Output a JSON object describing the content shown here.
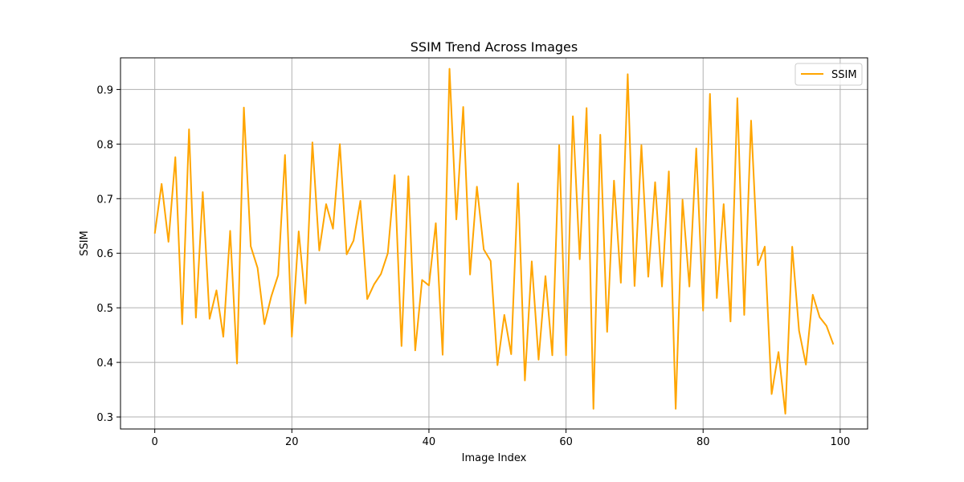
{
  "chart_data": {
    "type": "line",
    "title": "SSIM Trend Across Images",
    "xlabel": "Image Index",
    "ylabel": "SSIM",
    "xlim": [
      -5,
      104
    ],
    "ylim": [
      0.278,
      0.958
    ],
    "xticks": [
      0,
      20,
      40,
      60,
      80,
      100
    ],
    "yticks": [
      0.3,
      0.4,
      0.5,
      0.6,
      0.7,
      0.8,
      0.9
    ],
    "grid": true,
    "legend_position": "top-right",
    "series": [
      {
        "name": "SSIM",
        "color": "#ffa500",
        "x": [
          0,
          1,
          2,
          3,
          4,
          5,
          6,
          7,
          8,
          9,
          10,
          11,
          12,
          13,
          14,
          15,
          16,
          17,
          18,
          19,
          20,
          21,
          22,
          23,
          24,
          25,
          26,
          27,
          28,
          29,
          30,
          31,
          32,
          33,
          34,
          35,
          36,
          37,
          38,
          39,
          40,
          41,
          42,
          43,
          44,
          45,
          46,
          47,
          48,
          49,
          50,
          51,
          52,
          53,
          54,
          55,
          56,
          57,
          58,
          59,
          60,
          61,
          62,
          63,
          64,
          65,
          66,
          67,
          68,
          69,
          70,
          71,
          72,
          73,
          74,
          75,
          76,
          77,
          78,
          79,
          80,
          81,
          82,
          83,
          84,
          85,
          86,
          87,
          88,
          89,
          90,
          91,
          92,
          93,
          94,
          95,
          96,
          97,
          98,
          99
        ],
        "values": [
          0.636,
          0.727,
          0.621,
          0.776,
          0.47,
          0.827,
          0.482,
          0.712,
          0.48,
          0.532,
          0.447,
          0.641,
          0.398,
          0.867,
          0.613,
          0.573,
          0.47,
          0.521,
          0.56,
          0.78,
          0.447,
          0.64,
          0.508,
          0.803,
          0.605,
          0.69,
          0.645,
          0.8,
          0.598,
          0.623,
          0.696,
          0.516,
          0.543,
          0.562,
          0.6,
          0.743,
          0.43,
          0.741,
          0.422,
          0.551,
          0.541,
          0.655,
          0.414,
          0.938,
          0.662,
          0.868,
          0.561,
          0.722,
          0.607,
          0.586,
          0.395,
          0.487,
          0.415,
          0.728,
          0.367,
          0.585,
          0.405,
          0.558,
          0.413,
          0.798,
          0.413,
          0.851,
          0.589,
          0.866,
          0.315,
          0.817,
          0.456,
          0.733,
          0.546,
          0.928,
          0.54,
          0.798,
          0.557,
          0.73,
          0.539,
          0.75,
          0.315,
          0.698,
          0.539,
          0.792,
          0.495,
          0.892,
          0.518,
          0.69,
          0.475,
          0.884,
          0.487,
          0.843,
          0.578,
          0.612,
          0.342,
          0.419,
          0.306,
          0.612,
          0.458,
          0.396,
          0.524,
          0.483,
          0.467,
          0.433
        ]
      }
    ]
  }
}
